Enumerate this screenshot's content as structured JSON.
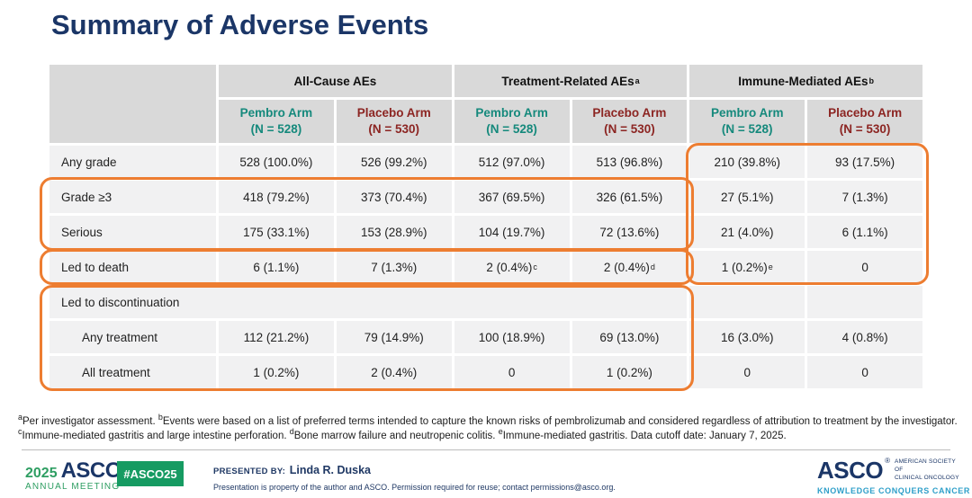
{
  "title": "Summary of Adverse Events",
  "colors": {
    "title_navy": "#1B3667",
    "pembro_teal": "#15897C",
    "placebo_red": "#8C2522",
    "highlight_orange": "#ED7D31",
    "header_grey": "#D9D9D9",
    "body_grey": "#F1F1F2",
    "asco_green": "#169B62",
    "tagline_blue": "#2E9FC9"
  },
  "table": {
    "groups": [
      {
        "label": "All-Cause AEs",
        "sup": ""
      },
      {
        "label": "Treatment-Related AEs",
        "sup": "a"
      },
      {
        "label": "Immune-Mediated AEs",
        "sup": "b"
      }
    ],
    "arms": [
      {
        "label": "Pembro Arm",
        "n": "(N = 528)"
      },
      {
        "label": "Placebo Arm",
        "n": "(N = 530)"
      },
      {
        "label": "Pembro Arm",
        "n": "(N = 528)"
      },
      {
        "label": "Placebo Arm",
        "n": "(N = 530)"
      },
      {
        "label": "Pembro Arm",
        "n": "(N = 528)"
      },
      {
        "label": "Placebo Arm",
        "n": "(N = 530)"
      }
    ],
    "rows": [
      {
        "label": "Any grade",
        "cells": [
          "528 (100.0%)",
          "526 (99.2%)",
          "512 (97.0%)",
          "513 (96.8%)",
          "210 (39.8%)",
          "93 (17.5%)"
        ]
      },
      {
        "label": "Grade ≥3",
        "cells": [
          "418 (79.2%)",
          "373 (70.4%)",
          "367 (69.5%)",
          "326 (61.5%)",
          "27 (5.1%)",
          "7 (1.3%)"
        ]
      },
      {
        "label": "Serious",
        "cells": [
          "175 (33.1%)",
          "153 (28.9%)",
          "104 (19.7%)",
          "72 (13.6%)",
          "21 (4.0%)",
          "6 (1.1%)"
        ]
      },
      {
        "label": "Led to death",
        "cells": [
          "6 (1.1%)",
          "7 (1.3%)",
          "2 (0.4%)",
          "2 (0.4%)",
          "1 (0.2%)",
          "0"
        ],
        "sups": [
          "",
          "",
          "c",
          "d",
          "e",
          ""
        ]
      },
      {
        "label": "Led to discontinuation",
        "cells": [
          "",
          ""
        ]
      },
      {
        "label": "Any treatment",
        "cells": [
          "112 (21.2%)",
          "79 (14.9%)",
          "100 (18.9%)",
          "69 (13.0%)",
          "16 (3.0%)",
          "4 (0.8%)"
        ]
      },
      {
        "label": "All treatment",
        "cells": [
          "1 (0.2%)",
          "2 (0.4%)",
          "0",
          "1 (0.2%)",
          "0",
          "0"
        ]
      }
    ]
  },
  "footnotes": {
    "line1": [
      {
        "sup": "a",
        "text": "Per investigator assessment. "
      },
      {
        "sup": "b",
        "text": "Events were based on a list of preferred terms intended to capture the known risks of pembrolizumab and considered regardless of attribution to treatment by the investigator."
      }
    ],
    "line2": [
      {
        "sup": "c",
        "text": "Immune-mediated gastritis and large intestine perforation. "
      },
      {
        "sup": "d",
        "text": "Bone marrow failure and neutropenic colitis. "
      },
      {
        "sup": "e",
        "text": "Immune-mediated gastritis.  "
      },
      {
        "sup": "",
        "text": "Data cutoff date: January 7, 2025."
      }
    ]
  },
  "footer": {
    "year": "2025",
    "asco_wordmark": "ASCO",
    "reg_mark": "®",
    "annual_meeting": "ANNUAL MEETING",
    "hashtag": "#ASCO25",
    "presented_by_label": "PRESENTED BY:",
    "presenter": "Linda R. Duska",
    "disclaimer": "Presentation is property of the author and ASCO. Permission required for reuse; contact permissions@asco.org.",
    "society_wordmark": "ASCO",
    "society_name_line1": "AMERICAN SOCIETY OF",
    "society_name_line2": "CLINICAL ONCOLOGY",
    "tagline": "KNOWLEDGE CONQUERS CANCER"
  }
}
